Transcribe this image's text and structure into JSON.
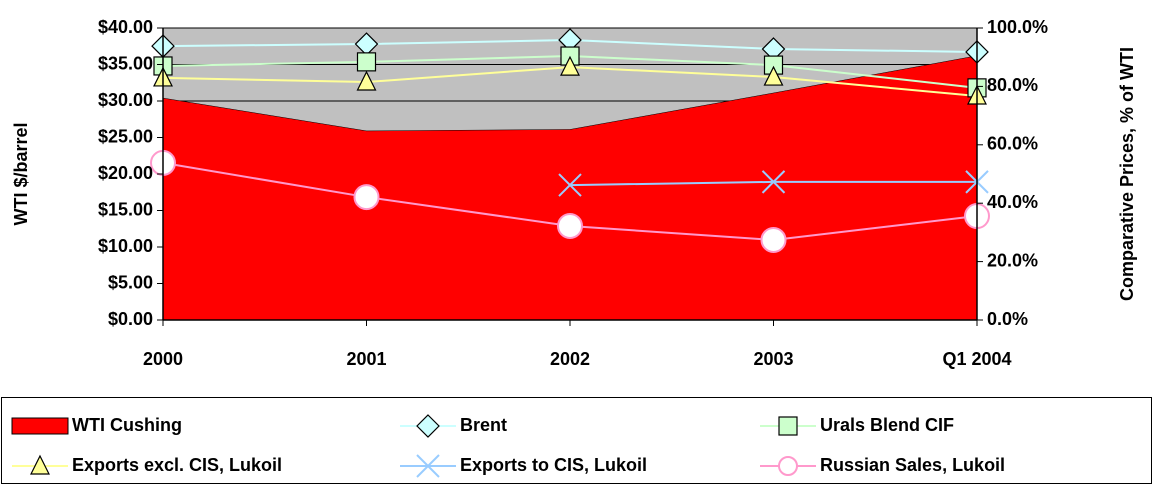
{
  "chart_data": {
    "type": "line",
    "categories": [
      "2000",
      "2001",
      "2002",
      "2003",
      "Q1 2004"
    ],
    "y_label": "WTI $/barrel",
    "y2_label": "Comparative Prices, % of WTI",
    "ylim": [
      0,
      40
    ],
    "yticks": [
      {
        "value": 0,
        "label": "$0.00"
      },
      {
        "value": 5,
        "label": "$5.00"
      },
      {
        "value": 10,
        "label": "$10.00"
      },
      {
        "value": 15,
        "label": "$15.00"
      },
      {
        "value": 20,
        "label": "$20.00"
      },
      {
        "value": 25,
        "label": "$25.00"
      },
      {
        "value": 30,
        "label": "$30.00"
      },
      {
        "value": 35,
        "label": "$35.00"
      },
      {
        "value": 40,
        "label": "$40.00"
      }
    ],
    "y2lim": [
      0,
      100
    ],
    "y2ticks": [
      {
        "value": 0,
        "label": "0.0%"
      },
      {
        "value": 20,
        "label": "20.0%"
      },
      {
        "value": 40,
        "label": "40.0%"
      },
      {
        "value": 60,
        "label": "60.0%"
      },
      {
        "value": 80,
        "label": "80.0%"
      },
      {
        "value": 100,
        "label": "100.0%"
      }
    ],
    "grid": true,
    "plot_background": "#c0c0c0",
    "legend": "bottom",
    "series": [
      {
        "name": "WTI Cushing",
        "color": "#ff0000",
        "area": true,
        "values": [
          30.4,
          25.9,
          26.1,
          31.1,
          36.2
        ]
      },
      {
        "name": "Brent",
        "color": "#ccffff",
        "axis": "y2",
        "marker": "diamond",
        "values": [
          93.8,
          94.5,
          95.9,
          92.8,
          91.8
        ]
      },
      {
        "name": "Urals Blend CIF",
        "color": "#ccffcc",
        "axis": "y2",
        "marker": "square",
        "values": [
          87.0,
          88.4,
          90.4,
          87.3,
          79.5
        ]
      },
      {
        "name": "Exports excl. CIS, Lukoil",
        "color": "#ffff99",
        "axis": "y2",
        "marker": "triangle",
        "values": [
          82.9,
          81.5,
          86.6,
          83.2,
          76.7
        ]
      },
      {
        "name": "Exports to CIS, Lukoil",
        "color": "#99ccff",
        "axis": "y2",
        "marker": "x",
        "values": [
          null,
          null,
          46.2,
          47.3,
          47.3
        ]
      },
      {
        "name": "Russian Sales, Lukoil",
        "color": "#ff99cc",
        "axis": "y2",
        "marker": "circle",
        "values": [
          53.8,
          42.1,
          32.2,
          27.4,
          35.6
        ]
      }
    ]
  }
}
